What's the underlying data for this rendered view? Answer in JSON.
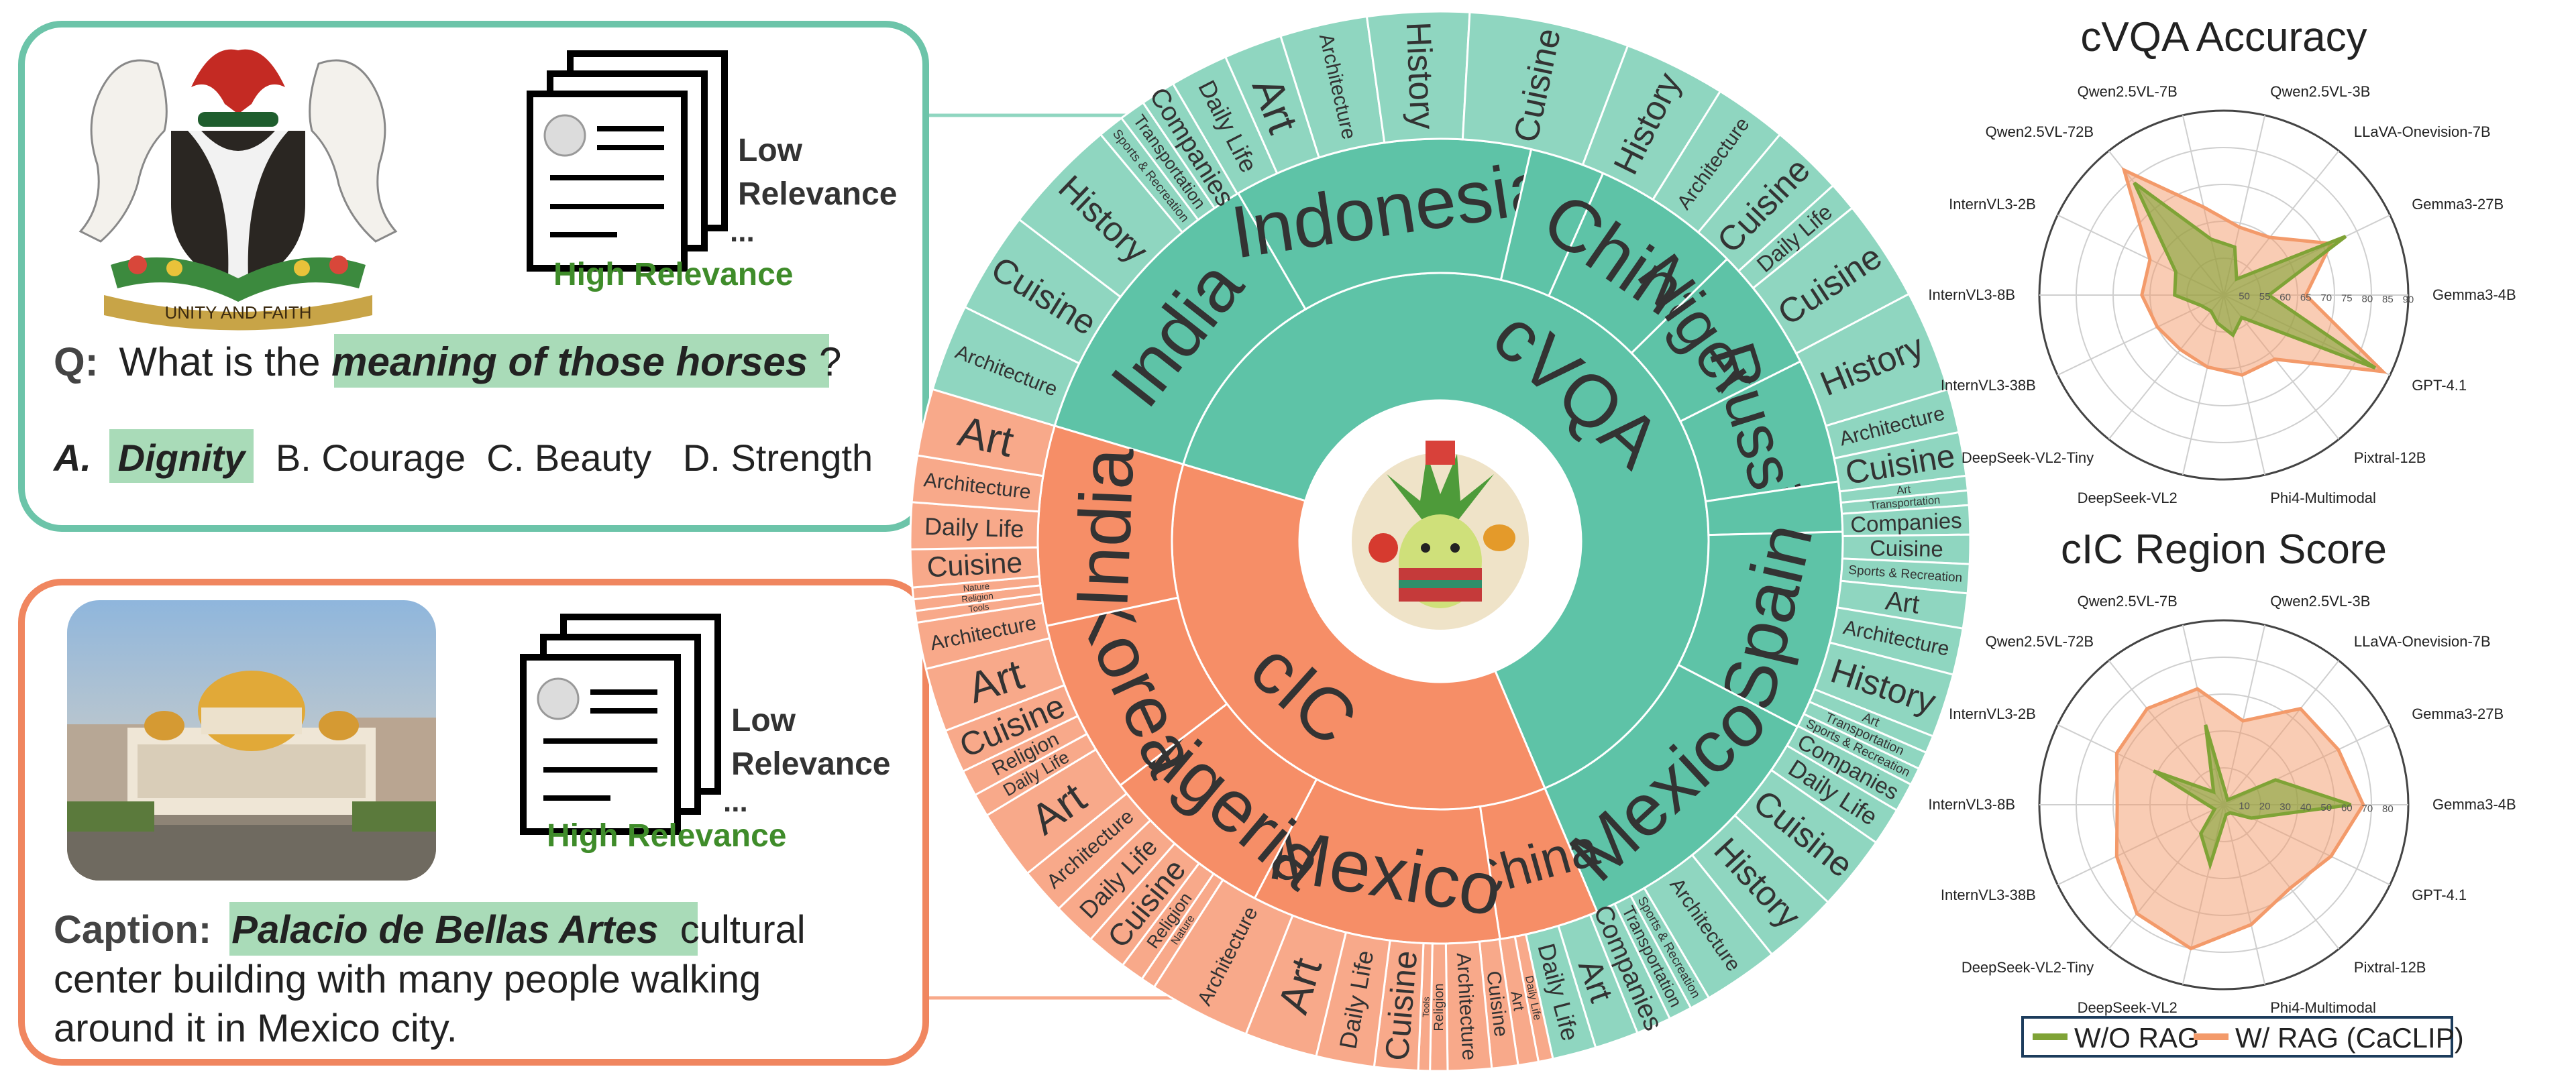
{
  "colors": {
    "cvqa_inner": "#5ec3a7",
    "cvqa_outer": "#8fd6c0",
    "cic_inner": "#f68e67",
    "cic_outer": "#f8a98a",
    "panel_green": "#6cc4a9",
    "panel_orange": "#f0865f",
    "highlight": "#a9dbb8",
    "relevance_green": "#3f8c2a",
    "wo_rag": "#7fa336",
    "w_rag": "#f39a6a"
  },
  "cvqa_panel": {
    "doc_low": [
      "Low",
      "Relevance"
    ],
    "doc_dots": "...",
    "doc_high": "High Relevance",
    "question_prefix": "Q:",
    "question_before": "What is the ",
    "question_highlight": "meaning of those horses",
    "question_after": "?",
    "answer_prefix": "A.",
    "answer_correct": "Dignity",
    "answer_others": "B. Courage  C. Beauty   D. Strength",
    "coat_of_arms_motto": "UNITY AND FAITH"
  },
  "cic_panel": {
    "doc_low": [
      "Low",
      "Relevance"
    ],
    "doc_dots": "...",
    "doc_high": "High Relevance",
    "caption_prefix": "Caption:",
    "caption_highlight": "Palacio de Bellas Artes",
    "caption_rest": " cultural",
    "caption_lines": [
      "center building with many people walking",
      "around it in Mexico city."
    ]
  },
  "sunburst": {
    "root": [
      {
        "label": "cVQA",
        "group": "cvqa",
        "value": 64
      },
      {
        "label": "cIC",
        "group": "cic",
        "value": 36
      }
    ],
    "countries": [
      {
        "label": "India",
        "group": "cvqa",
        "value": 12
      },
      {
        "label": "Indonesia",
        "group": "cvqa",
        "value": 12
      },
      {
        "label": "",
        "group": "cvqa",
        "value": 3
      },
      {
        "label": "China",
        "group": "cvqa",
        "value": 6
      },
      {
        "label": "Nigeria",
        "group": "cvqa",
        "value": 5
      },
      {
        "label": "Russia",
        "group": "cvqa",
        "value": 5
      },
      {
        "label": "",
        "group": "cvqa",
        "value": 2
      },
      {
        "label": "Spain",
        "group": "cvqa",
        "value": 8
      },
      {
        "label": "Mexico",
        "group": "cvqa",
        "value": 11
      },
      {
        "label": "China",
        "group": "cic",
        "value": 4
      },
      {
        "label": "Mexico",
        "group": "cic",
        "value": 10
      },
      {
        "label": "Nigeria",
        "group": "cic",
        "value": 7
      },
      {
        "label": "Korea",
        "group": "cic",
        "value": 7
      },
      {
        "label": "India",
        "group": "cic",
        "value": 8
      }
    ],
    "topics": [
      {
        "label": "Architecture",
        "group": "cvqa",
        "value": 3
      },
      {
        "label": "Cuisine",
        "group": "cvqa",
        "value": 3.5
      },
      {
        "label": "History",
        "group": "cvqa",
        "value": 4
      },
      {
        "label": "Sports & Recreation",
        "group": "cvqa",
        "value": 0.9
      },
      {
        "label": "Transportation",
        "group": "cvqa",
        "value": 0.9
      },
      {
        "label": "Companies",
        "group": "cvqa",
        "value": 1.2
      },
      {
        "label": "Daily Life",
        "group": "cvqa",
        "value": 2
      },
      {
        "label": "Art",
        "group": "cvqa",
        "value": 2
      },
      {
        "label": "Architecture",
        "group": "cvqa",
        "value": 3
      },
      {
        "label": "History",
        "group": "cvqa",
        "value": 3.5
      },
      {
        "label": "Cuisine",
        "group": "cvqa",
        "value": 5.5
      },
      {
        "label": "History",
        "group": "cvqa",
        "value": 3.5
      },
      {
        "label": "Architecture",
        "group": "cvqa",
        "value": 2.5
      },
      {
        "label": "Cuisine",
        "group": "cvqa",
        "value": 2.5
      },
      {
        "label": "Daily Life",
        "group": "cvqa",
        "value": 1
      },
      {
        "label": "Cuisine",
        "group": "cvqa",
        "value": 3.5
      },
      {
        "label": "History",
        "group": "cvqa",
        "value": 3.5
      },
      {
        "label": "Architecture",
        "group": "cvqa",
        "value": 1.5
      },
      {
        "label": "Cuisine",
        "group": "cvqa",
        "value": 1.5
      },
      {
        "label": "Art",
        "group": "cvqa",
        "value": 0.5
      },
      {
        "label": "Transportation",
        "group": "cvqa",
        "value": 0.5
      },
      {
        "label": "Companies",
        "group": "cvqa",
        "value": 1
      },
      {
        "label": "Cuisine",
        "group": "cvqa",
        "value": 1
      },
      {
        "label": "Sports & Recreation",
        "group": "cvqa",
        "value": 1
      },
      {
        "label": "Art",
        "group": "cvqa",
        "value": 1.2
      },
      {
        "label": "Architecture",
        "group": "cvqa",
        "value": 1.6
      },
      {
        "label": "History",
        "group": "cvqa",
        "value": 2.2
      },
      {
        "label": "Art",
        "group": "cvqa",
        "value": 0.6
      },
      {
        "label": "Transportation",
        "group": "cvqa",
        "value": 0.6
      },
      {
        "label": "Sports & Recreation",
        "group": "cvqa",
        "value": 0.6
      },
      {
        "label": "Companies",
        "group": "cvqa",
        "value": 1
      },
      {
        "label": "Daily Life",
        "group": "cvqa",
        "value": 1.3
      },
      {
        "label": "Cuisine",
        "group": "cvqa",
        "value": 2.6
      },
      {
        "label": "History",
        "group": "cvqa",
        "value": 2.6
      },
      {
        "label": "Architecture",
        "group": "cvqa",
        "value": 2.6
      },
      {
        "label": "Sports & Recreation",
        "group": "cvqa",
        "value": 0.7
      },
      {
        "label": "Transportation",
        "group": "cvqa",
        "value": 0.8
      },
      {
        "label": "Companies",
        "group": "cvqa",
        "value": 1.2
      },
      {
        "label": "Art",
        "group": "cvqa",
        "value": 1.5
      },
      {
        "label": "Daily Life",
        "group": "cvqa",
        "value": 1.5
      },
      {
        "label": "Daily Life",
        "group": "cic",
        "value": 0.5
      },
      {
        "label": "Art",
        "group": "cic",
        "value": 0.7
      },
      {
        "label": "Cuisine",
        "group": "cic",
        "value": 0.9
      },
      {
        "label": "Architecture",
        "group": "cic",
        "value": 1.5
      },
      {
        "label": "Religion",
        "group": "cic",
        "value": 0.6
      },
      {
        "label": "Tools",
        "group": "cic",
        "value": 0.4
      },
      {
        "label": "Cuisine",
        "group": "cic",
        "value": 1.5
      },
      {
        "label": "Daily Life",
        "group": "cic",
        "value": 2
      },
      {
        "label": "Art",
        "group": "cic",
        "value": 2.5
      },
      {
        "label": "Architecture",
        "group": "cic",
        "value": 3.5
      },
      {
        "label": "Nature",
        "group": "cic",
        "value": 0.5
      },
      {
        "label": "Religion",
        "group": "cic",
        "value": 0.8
      },
      {
        "label": "Cuisine",
        "group": "cic",
        "value": 1.4
      },
      {
        "label": "Daily Life",
        "group": "cic",
        "value": 1.5
      },
      {
        "label": "Architecture",
        "group": "cic",
        "value": 1.6
      },
      {
        "label": "Art",
        "group": "cic",
        "value": 2.4
      },
      {
        "label": "Daily Life",
        "group": "cic",
        "value": 0.8
      },
      {
        "label": "Religion",
        "group": "cic",
        "value": 0.9
      },
      {
        "label": "Cuisine",
        "group": "cic",
        "value": 1.5
      },
      {
        "label": "Art",
        "group": "cic",
        "value": 2.2
      },
      {
        "label": "Architecture",
        "group": "cic",
        "value": 1.6
      },
      {
        "label": "Tools",
        "group": "cic",
        "value": 0.4
      },
      {
        "label": "Religion",
        "group": "cic",
        "value": 0.4
      },
      {
        "label": "Nature",
        "group": "cic",
        "value": 0.4
      },
      {
        "label": "Cuisine",
        "group": "cic",
        "value": 1.3
      },
      {
        "label": "Daily Life",
        "group": "cic",
        "value": 1.6
      },
      {
        "label": "Architecture",
        "group": "cic",
        "value": 1.6
      },
      {
        "label": "Art",
        "group": "cic",
        "value": 2.3
      }
    ]
  },
  "chart_data": [
    {
      "type": "radar",
      "title": "cVQA Accuracy",
      "axes": [
        "Qwen2.5VL-3B",
        "LLaVA-Onevision-7B",
        "Gemma3-27B",
        "Gemma3-4B",
        "GPT-4.1",
        "Pixtral-12B",
        "Phi4-Multimodal",
        "DeepSeek-VL2",
        "DeepSeek-VL2-Tiny",
        "InternVL3-38B",
        "InternVL3-8B",
        "InternVL3-2B",
        "Qwen2.5VL-72B",
        "Qwen2.5VL-7B"
      ],
      "ticks": [
        50,
        55,
        60,
        65,
        70,
        75,
        80,
        85,
        90
      ],
      "range": [
        45,
        90
      ],
      "series": [
        {
          "name": "W/O RAG",
          "values": [
            57,
            50,
            78,
            56,
            86,
            52,
            55,
            52,
            50,
            51,
            57,
            58,
            80,
            59
          ]
        },
        {
          "name": "W/ RAG (CaCLIP)",
          "values": [
            62,
            63,
            74,
            65,
            88,
            65,
            65,
            63,
            62,
            63,
            65,
            65,
            84,
            67
          ]
        }
      ]
    },
    {
      "type": "radar",
      "title": "cIC Region Score",
      "axes": [
        "Qwen2.5VL-3B",
        "LLaVA-Onevision-7B",
        "Gemma3-27B",
        "Gemma3-4B",
        "GPT-4.1",
        "Pixtral-12B",
        "Phi4-Multimodal",
        "DeepSeek-VL2",
        "DeepSeek-VL2-Tiny",
        "InternVL3-38B",
        "InternVL3-8B",
        "InternVL3-2B",
        "Qwen2.5VL-72B",
        "Qwen2.5VL-7B"
      ],
      "ticks": [
        10,
        20,
        30,
        40,
        50,
        60,
        70,
        80
      ],
      "range": [
        0,
        90
      ],
      "series": [
        {
          "name": "W/O RAG",
          "values": [
            5,
            3,
            28,
            62,
            15,
            5,
            5,
            30,
            18,
            5,
            8,
            38,
            8,
            40
          ]
        },
        {
          "name": "W/ RAG (CaCLIP)",
          "values": [
            42,
            60,
            62,
            68,
            58,
            52,
            60,
            72,
            68,
            58,
            52,
            58,
            60,
            58
          ]
        }
      ]
    }
  ],
  "legend": {
    "wo_rag": "W/O RAG",
    "w_rag": "W/ RAG (CaCLIP)"
  }
}
